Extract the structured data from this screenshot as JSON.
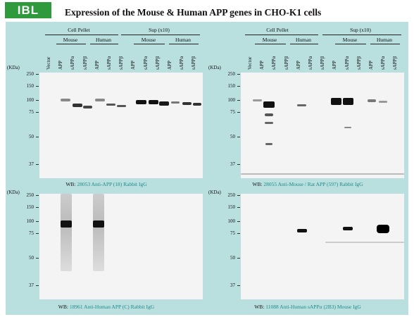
{
  "logo": "IBL",
  "title": "Expression of the Mouse & Human APP genes in CHO-K1 cells",
  "kda_label": "(KDa)",
  "panels": [
    {
      "groups": {
        "cell_pellet": "Cell Pellet",
        "sup": "Sup (x10)",
        "mouse": "Mouse",
        "human": "Human"
      },
      "lanes": [
        "Vector",
        "APP",
        "sAPPα",
        "sAPPβ",
        "APP",
        "sAPPα",
        "sAPPβ",
        "APP",
        "sAPPα",
        "sAPPβ",
        "APP",
        "sAPPα",
        "sAPPβ"
      ],
      "markers": [
        "250",
        "150",
        "100",
        "75",
        "50",
        "37"
      ],
      "caption_prefix": "WB: ",
      "caption_link": "28053 Anti-APP (18) Rabbit IgG"
    },
    {
      "groups": {
        "cell_pellet": "Cell Pellet",
        "sup": "Sup (x10)",
        "mouse": "Mouse",
        "human": "Human"
      },
      "lanes": [
        "Vector",
        "APP",
        "sAPPα",
        "sAPPβ",
        "APP",
        "sAPPα",
        "sAPPβ",
        "APP",
        "sAPPα",
        "sAPPβ",
        "APP",
        "sAPPα",
        "sAPPβ"
      ],
      "markers": [
        "250",
        "150",
        "100",
        "75",
        "50",
        "37"
      ],
      "caption_prefix": "WB: ",
      "caption_link": "28055 Anti-Mouse / Rat APP (597) Rabbit IgG"
    },
    {
      "lanes": [],
      "markers": [
        "250",
        "150",
        "100",
        "75",
        "50",
        "37"
      ],
      "caption_prefix": "WB: ",
      "caption_link": "18961 Anti-Human APP (C) Rabbit IgG"
    },
    {
      "lanes": [],
      "markers": [
        "250",
        "150",
        "100",
        "75",
        "50",
        "37"
      ],
      "caption_prefix": "WB: ",
      "caption_link": "11088 Anti-Human sAPPα (2B3) Mouse IgG"
    }
  ]
}
